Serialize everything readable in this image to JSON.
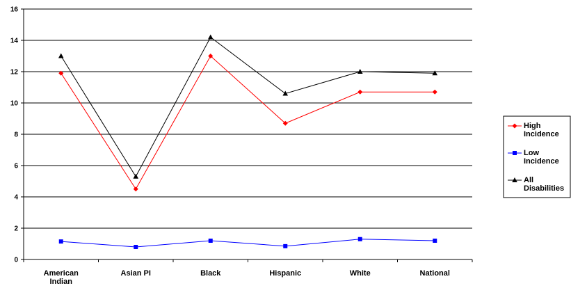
{
  "chart_data": {
    "type": "line",
    "title": "",
    "xlabel": "",
    "ylabel": "",
    "categories": [
      [
        "American",
        "Indian"
      ],
      [
        "Asian PI"
      ],
      [
        "Black"
      ],
      [
        "Hispanic"
      ],
      [
        "White"
      ],
      [
        "National"
      ]
    ],
    "ylim": [
      0,
      16
    ],
    "yticks": [
      "0",
      "2",
      "4",
      "6",
      "8",
      "10",
      "12",
      "14",
      "16"
    ],
    "grid": "horizontal",
    "legend_position": "right",
    "series": [
      {
        "name": [
          "High",
          "Incidence"
        ],
        "color": "#ff0000",
        "marker": "diamond",
        "values": [
          11.9,
          4.5,
          13.0,
          8.7,
          10.7,
          10.7
        ]
      },
      {
        "name": [
          "Low",
          "Incidence"
        ],
        "color": "#0000ff",
        "marker": "square",
        "values": [
          1.15,
          0.8,
          1.2,
          0.85,
          1.3,
          1.2
        ]
      },
      {
        "name": [
          "All",
          "Disabilities"
        ],
        "color": "#000000",
        "marker": "triangle",
        "values": [
          13.0,
          5.3,
          14.2,
          10.6,
          12.0,
          11.9
        ]
      }
    ]
  }
}
